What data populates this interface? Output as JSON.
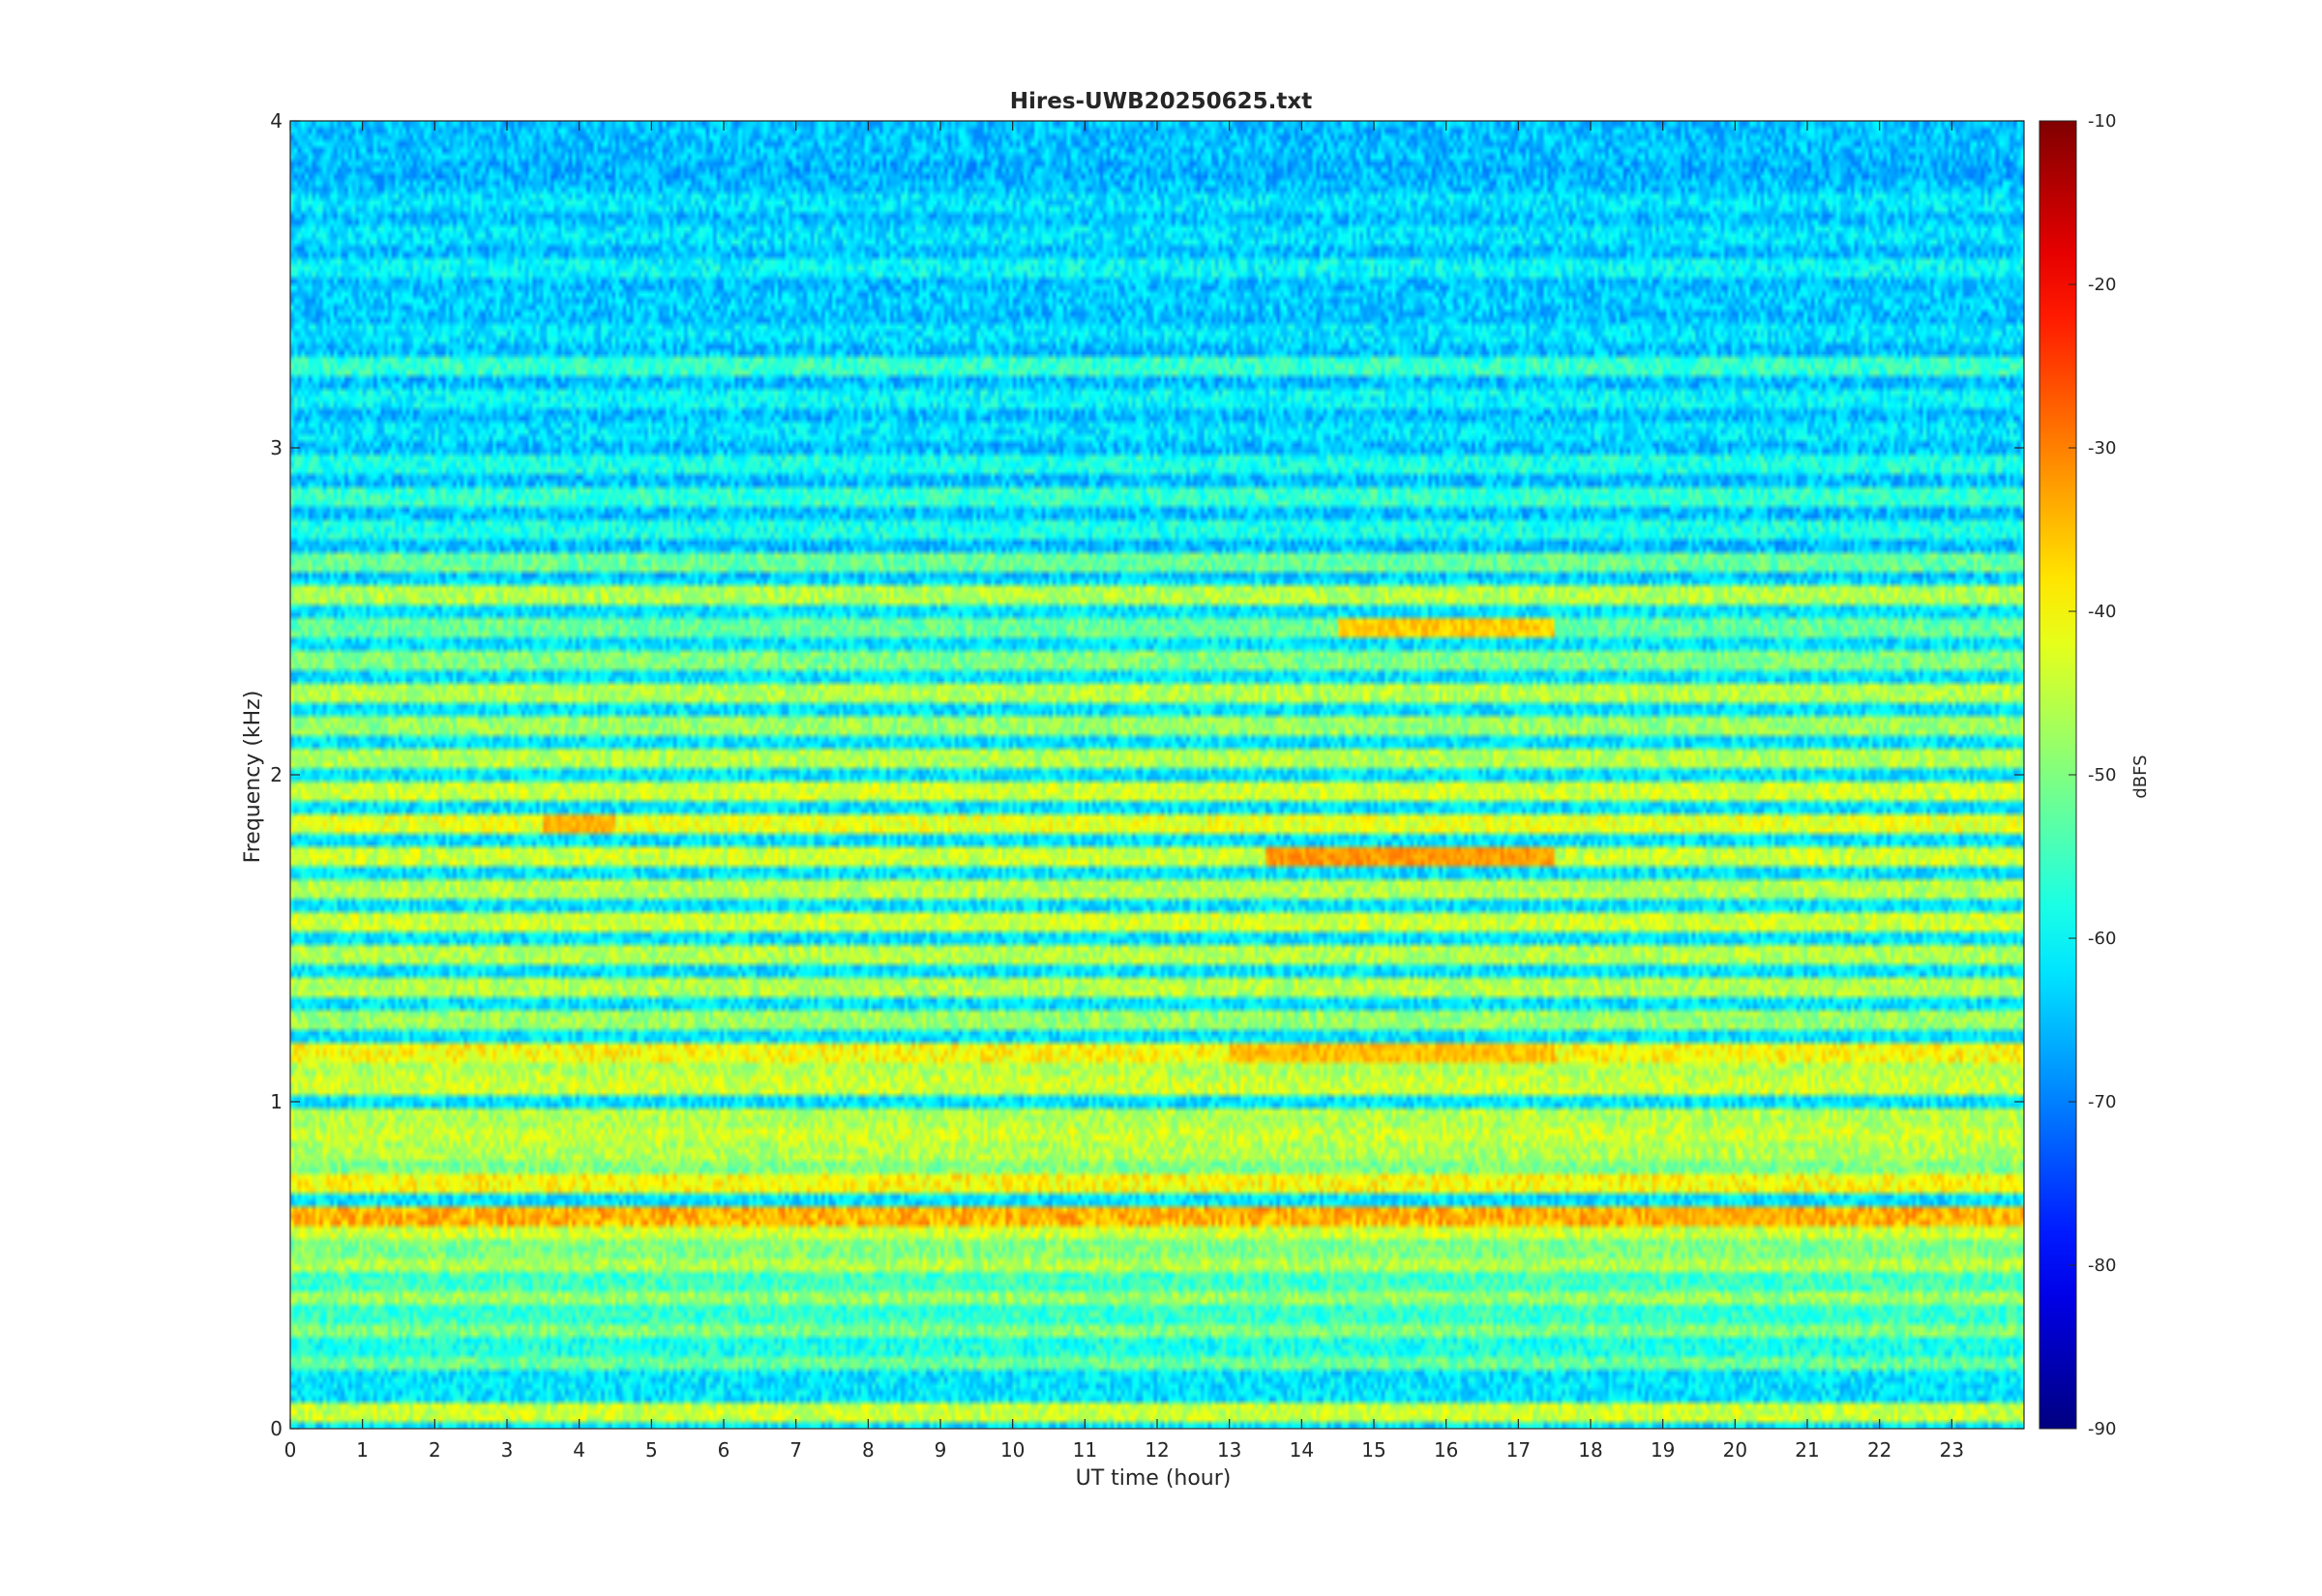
{
  "chart_data": {
    "type": "heatmap",
    "title": "Hires-UWB20250625.txt",
    "xlabel": "UT time (hour)",
    "ylabel": "Frequency (kHz)",
    "xlim": [
      0,
      24
    ],
    "ylim": [
      0,
      4
    ],
    "x_ticks": [
      "0",
      "1",
      "2",
      "3",
      "4",
      "5",
      "6",
      "7",
      "8",
      "9",
      "10",
      "11",
      "12",
      "13",
      "14",
      "15",
      "16",
      "17",
      "18",
      "19",
      "20",
      "21",
      "22",
      "23"
    ],
    "y_ticks": [
      "0",
      "1",
      "2",
      "3",
      "4"
    ],
    "colorbar": {
      "label": "dBFS",
      "colormap": "jet",
      "clim": [
        -90,
        -10
      ],
      "ticks": [
        "-90",
        "-80",
        "-70",
        "-60",
        "-50",
        "-40",
        "-30",
        "-20",
        "-10"
      ]
    },
    "frequency_bands_khz": [
      0.05,
      0.1,
      0.2,
      0.25,
      0.3,
      0.35,
      0.4,
      0.45,
      0.5,
      0.55,
      0.6,
      0.65,
      0.75,
      0.8,
      0.85,
      0.9,
      0.95,
      1.05,
      1.1,
      1.15,
      1.25,
      1.35,
      1.45,
      1.55,
      1.65,
      1.75,
      1.85,
      1.95,
      2.05,
      2.15,
      2.25,
      2.35,
      2.45,
      2.55,
      2.65,
      2.75,
      2.85,
      2.95,
      3.05,
      3.15,
      3.25,
      3.35,
      3.45,
      3.55,
      3.65,
      3.75,
      3.85
    ],
    "band_level_dbfs": [
      -44,
      -62,
      -52,
      -58,
      -50,
      -56,
      -48,
      -55,
      -46,
      -50,
      -44,
      -34,
      -40,
      -50,
      -46,
      -44,
      -46,
      -44,
      -46,
      -40,
      -48,
      -46,
      -46,
      -44,
      -46,
      -44,
      -42,
      -44,
      -46,
      -48,
      -46,
      -50,
      -52,
      -46,
      -52,
      -58,
      -56,
      -58,
      -62,
      -60,
      -56,
      -62,
      -64,
      -60,
      -62,
      -62,
      -66
    ],
    "background_level_dbfs": -62,
    "hotspots": [
      {
        "x_hour": [
          13.5,
          17.5
        ],
        "freq_khz": 1.75,
        "level_dbfs": -32
      },
      {
        "x_hour": [
          13.0,
          17.5
        ],
        "freq_khz": 1.15,
        "level_dbfs": -35
      },
      {
        "x_hour": [
          19.0,
          20.8
        ],
        "freq_khz": 0.65,
        "level_dbfs": -34
      },
      {
        "x_hour": [
          3.5,
          4.5
        ],
        "freq_khz": 1.85,
        "level_dbfs": -34
      },
      {
        "x_hour": [
          14.5,
          17.5
        ],
        "freq_khz": 2.45,
        "level_dbfs": -36
      }
    ]
  }
}
